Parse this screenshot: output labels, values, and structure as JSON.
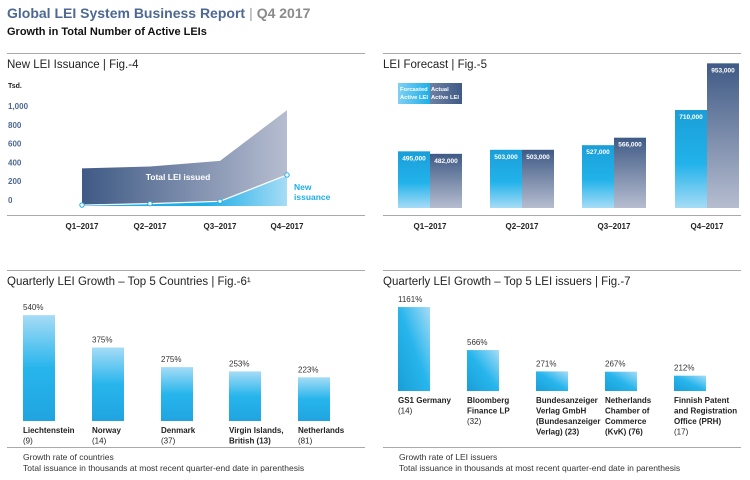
{
  "header": {
    "title": "Global LEI System Business Report",
    "period": "Q4 2017",
    "subtitle": "Growth in Total Number of Active LEIs"
  },
  "colors": {
    "dark_blue": "#3f5a85",
    "light_slate": "#b6bdd0",
    "cyan": "#1eaee6",
    "light_cyan": "#a6dcf6",
    "title_blue": "#4d6893"
  },
  "chart_data": [
    {
      "type": "area",
      "title": "New LEI Issuance | Fig.-4",
      "ylabel": "Tsd.",
      "yticks": [
        "0",
        "200",
        "400",
        "600",
        "800",
        "1,000"
      ],
      "ylim": [
        0,
        1000
      ],
      "categories": [
        "Q1–2017",
        "Q2–2017",
        "Q3–2017",
        "Q4–2017"
      ],
      "series": [
        {
          "name": "Total LEI issued",
          "values": [
            400,
            420,
            480,
            1020
          ]
        },
        {
          "name": "New issuance",
          "values": [
            10,
            25,
            50,
            330
          ]
        }
      ]
    },
    {
      "type": "bar",
      "title": "LEI Forecast | Fig.-5",
      "categories": [
        "Q1–2017",
        "Q2–2017",
        "Q3–2017",
        "Q4–2017"
      ],
      "legend": [
        "Forcasted Active LEI",
        "Actual Active LEI"
      ],
      "series": [
        {
          "name": "Forcasted Active LEI",
          "values": [
            495000,
            503000,
            527000,
            710000
          ],
          "labels": [
            "495,000",
            "503,000",
            "527,000",
            "710,000"
          ]
        },
        {
          "name": "Actual Active LEI",
          "values": [
            482000,
            503000,
            566000,
            953000
          ],
          "labels": [
            "482,000",
            "503,000",
            "566,000",
            "953,000"
          ]
        }
      ]
    },
    {
      "type": "bar",
      "title": "Quarterly LEI Growth – Top 5 Countries | Fig.-6¹",
      "categories": [
        [
          "Liechtenstein",
          "(9)"
        ],
        [
          "Norway",
          "(14)"
        ],
        [
          "Denmark",
          "(37)"
        ],
        [
          "Virgin Islands,",
          "British (13)"
        ],
        [
          "Netherlands",
          "(81)"
        ]
      ],
      "values": [
        540,
        375,
        275,
        253,
        223
      ],
      "labels": [
        "540%",
        "375%",
        "275%",
        "253%",
        "223%"
      ],
      "notes": [
        "Growth rate of countries",
        "Total issuance in thousands at most recent quarter-end date in parenthesis"
      ]
    },
    {
      "type": "bar",
      "title": "Quarterly LEI Growth – Top 5 LEI issuers | Fig.-7",
      "categories": [
        [
          "GS1 Germany",
          "(14)"
        ],
        [
          "Bloomberg",
          "Finance LP",
          "(32)"
        ],
        [
          "Bundesanzeiger",
          "Verlag GmbH",
          "(Bundesanzeiger",
          "Verlag) (23)"
        ],
        [
          "Netherlands",
          "Chamber of",
          "Commerce",
          "(KvK) (76)"
        ],
        [
          "Finnish Patent",
          "and Registration",
          "Office (PRH)",
          "(17)"
        ]
      ],
      "values": [
        1161,
        566,
        271,
        267,
        212
      ],
      "labels": [
        "1161%",
        "566%",
        "271%",
        "267%",
        "212%"
      ],
      "notes": [
        "Growth rate of LEI issuers",
        "Total issuance in thousands at most recent quarter-end date in parenthesis"
      ]
    }
  ]
}
